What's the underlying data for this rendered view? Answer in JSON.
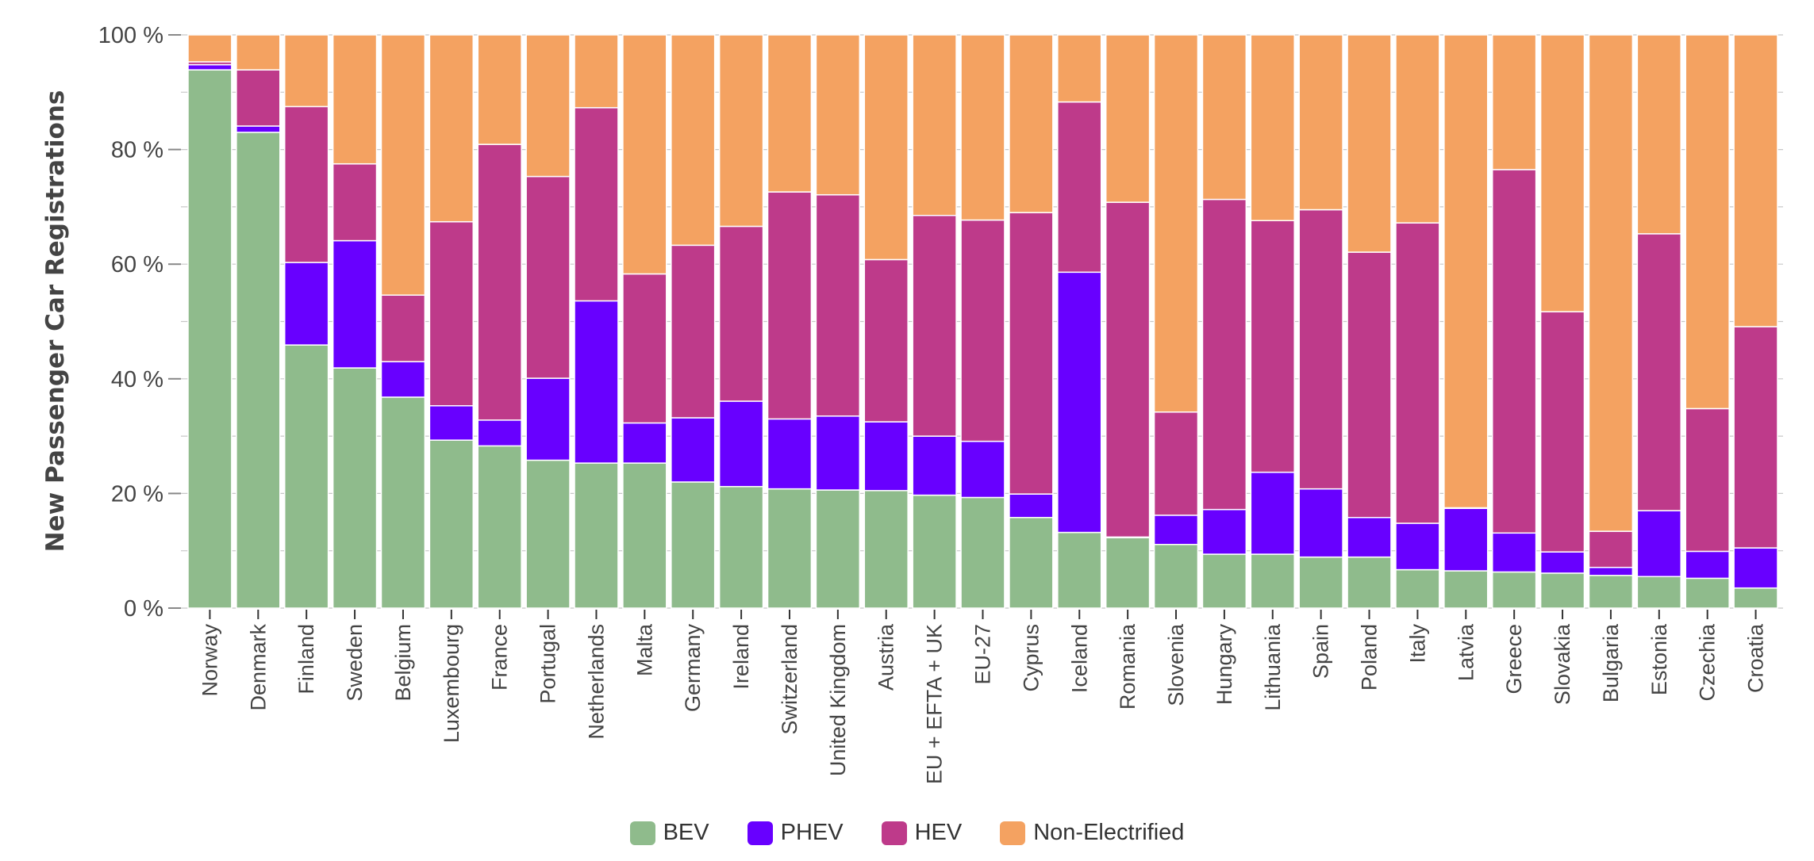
{
  "chart_data": {
    "type": "bar",
    "stacked": true,
    "orientation": "vertical",
    "title": "",
    "xlabel": "",
    "ylabel": "New Passenger Car Registrations",
    "ylim": [
      0,
      100
    ],
    "yunit": "%",
    "yticks": [
      0,
      20,
      40,
      60,
      80,
      100
    ],
    "ytick_labels": [
      "0 %",
      "20 %",
      "40 %",
      "60 %",
      "80 %",
      "100 %"
    ],
    "minor_grid_step": 10,
    "grid": true,
    "legend_position": "bottom-center",
    "categories": [
      "Norway",
      "Denmark",
      "Finland",
      "Sweden",
      "Belgium",
      "Luxembourg",
      "France",
      "Portugal",
      "Netherlands",
      "Malta",
      "Germany",
      "Ireland",
      "Switzerland",
      "United Kingdom",
      "Austria",
      "EU + EFTA + UK",
      "EU-27",
      "Cyprus",
      "Iceland",
      "Romania",
      "Slovenia",
      "Hungary",
      "Lithuania",
      "Spain",
      "Poland",
      "Italy",
      "Latvia",
      "Greece",
      "Slovakia",
      "Bulgaria",
      "Estonia",
      "Czechia",
      "Croatia"
    ],
    "series": [
      {
        "name": "BEV",
        "color": "#8fbb8c",
        "values": [
          93.9,
          83.0,
          45.9,
          41.9,
          36.8,
          29.3,
          28.3,
          25.8,
          25.3,
          25.3,
          22.0,
          21.2,
          20.8,
          20.6,
          20.5,
          19.7,
          19.3,
          15.8,
          13.2,
          12.3,
          11.1,
          9.4,
          9.4,
          8.9,
          8.9,
          6.7,
          6.5,
          6.3,
          6.1,
          5.7,
          5.5,
          5.2,
          3.5
        ]
      },
      {
        "name": "PHEV",
        "color": "#6800ff",
        "values": [
          0.9,
          1.1,
          14.4,
          22.2,
          6.2,
          6.0,
          4.5,
          14.3,
          28.3,
          7.0,
          11.2,
          14.9,
          12.2,
          12.9,
          12.0,
          10.3,
          9.8,
          4.1,
          45.4,
          0.1,
          5.1,
          7.8,
          14.3,
          11.9,
          6.9,
          8.1,
          10.9,
          6.8,
          3.7,
          1.4,
          11.5,
          4.7,
          7.0
        ]
      },
      {
        "name": "HEV",
        "color": "#be3a8a",
        "values": [
          0.5,
          9.8,
          27.2,
          13.4,
          11.6,
          32.1,
          48.1,
          35.2,
          33.7,
          26.0,
          30.1,
          30.5,
          39.6,
          38.6,
          28.3,
          38.5,
          38.6,
          49.1,
          29.7,
          58.4,
          18.0,
          54.1,
          43.9,
          48.7,
          46.3,
          52.4,
          0.1,
          63.4,
          41.9,
          6.3,
          48.3,
          24.9,
          38.6
        ]
      },
      {
        "name": "Non-Electrified",
        "color": "#f4a261",
        "values": [
          4.7,
          6.1,
          12.5,
          22.5,
          45.4,
          32.6,
          19.1,
          24.7,
          12.7,
          41.7,
          36.7,
          33.4,
          27.4,
          27.9,
          39.2,
          31.5,
          32.3,
          31.0,
          11.7,
          29.2,
          65.8,
          28.7,
          32.4,
          30.5,
          37.9,
          32.8,
          82.5,
          23.5,
          48.3,
          86.6,
          34.7,
          65.2,
          50.9
        ]
      }
    ]
  },
  "legend": {
    "items": [
      {
        "label": "BEV",
        "color": "#8fbb8c"
      },
      {
        "label": "PHEV",
        "color": "#6800ff"
      },
      {
        "label": "HEV",
        "color": "#be3a8a"
      },
      {
        "label": "Non-Electrified",
        "color": "#f4a261"
      }
    ]
  }
}
